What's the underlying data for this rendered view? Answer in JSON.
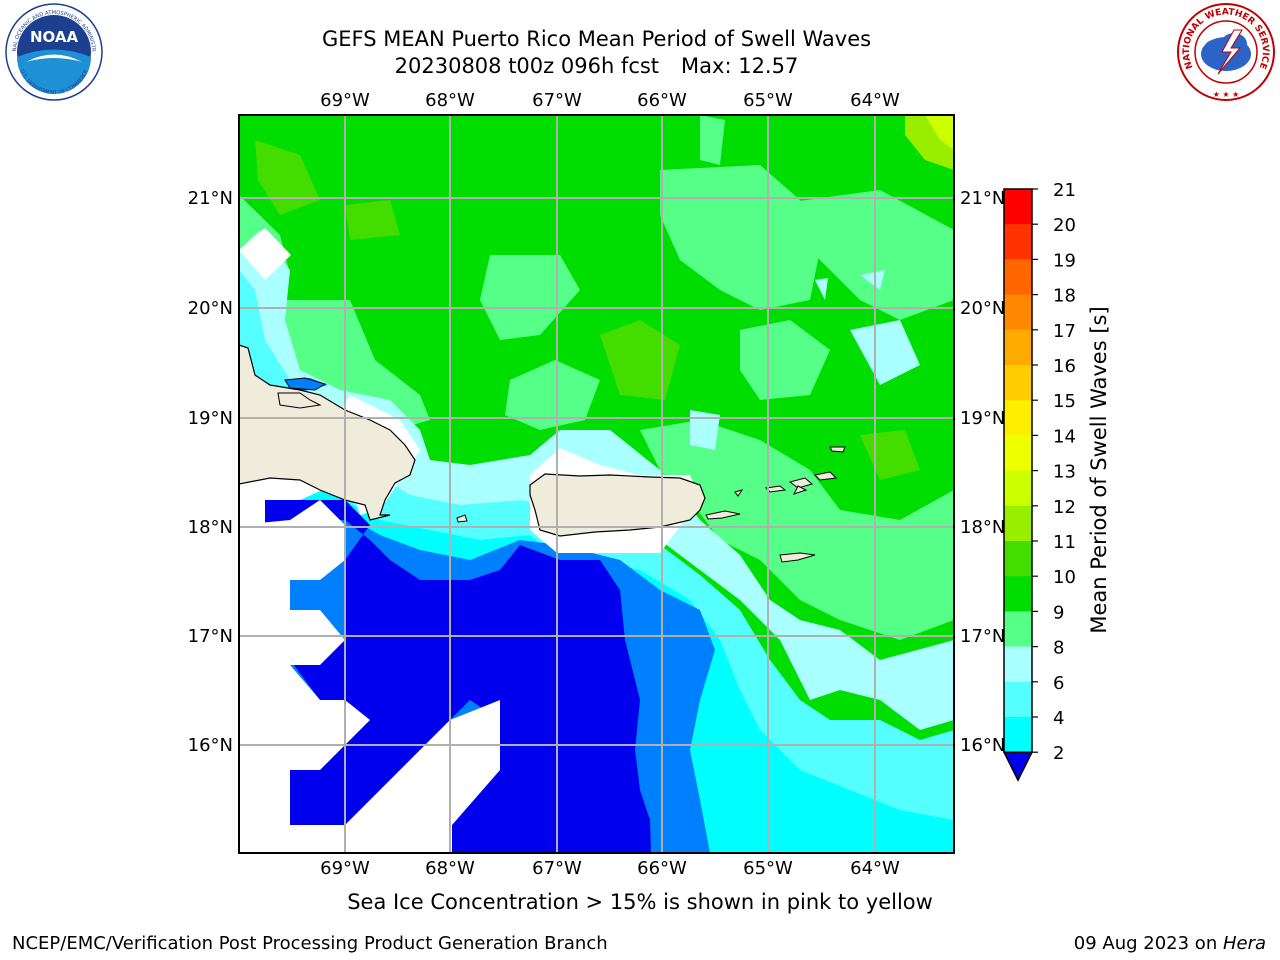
{
  "title": {
    "line1": "GEFS MEAN Puerto Rico Mean Period of Swell Waves",
    "run": "20230808 t00z 096h fcst",
    "max": "Max: 12.57"
  },
  "logos": {
    "left": {
      "name": "noaa-logo",
      "text": "NOAA",
      "ring_top": "NATIONAL OCEANIC AND ATMOSPHERIC ADMINISTRATION",
      "ring_bottom": "U.S. DEPARTMENT OF COMMERCE"
    },
    "right": {
      "name": "nws-logo",
      "ring_text": "NATIONAL WEATHER SERVICE"
    }
  },
  "map": {
    "lon_labels": [
      "69°W",
      "68°W",
      "67°W",
      "66°W",
      "65°W",
      "64°W"
    ],
    "lat_labels": [
      "21°N",
      "20°N",
      "19°N",
      "18°N",
      "17°N",
      "16°N"
    ],
    "extent": {
      "lon_min": -70.0,
      "lon_max": -63.25,
      "lat_min": 15.0,
      "lat_max": 21.75
    },
    "land_color": "#efecdc",
    "grid_color": "#b0b0b0"
  },
  "colorbar": {
    "label": "Mean Period of Swell Waves [s]",
    "ticks": [
      "21",
      "20",
      "19",
      "18",
      "17",
      "16",
      "15",
      "14",
      "13",
      "12",
      "11",
      "10",
      "9",
      "8",
      "6",
      "4",
      "2"
    ],
    "colors": [
      "#ff0000",
      "#ff3300",
      "#ff6600",
      "#ff8800",
      "#ffaa00",
      "#ffcc00",
      "#ffee00",
      "#eeff00",
      "#ccff00",
      "#99ee00",
      "#44dd00",
      "#00dd00",
      "#55ff88",
      "#aaffff",
      "#55ffff",
      "#00ffff",
      "#0080ff"
    ],
    "under_color": "#0000ee"
  },
  "note": "Sea Ice Concentration > 15% is shown in pink to yellow",
  "footer": {
    "left": "NCEP/EMC/Verification Post Processing Product Generation Branch",
    "date": "09 Aug 2023 on ",
    "host": "Hera"
  }
}
